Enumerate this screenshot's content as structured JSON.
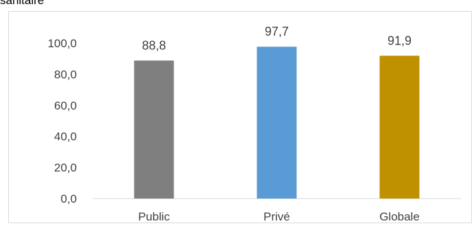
{
  "header_fragment": "sanitaire",
  "chart_data": {
    "type": "bar",
    "categories": [
      "Public",
      "Privé",
      "Globale"
    ],
    "values": [
      88.8,
      97.7,
      91.9
    ],
    "value_labels": [
      "88,8",
      "97,7",
      "91,9"
    ],
    "colors": [
      "#7f7f7f",
      "#5b9bd5",
      "#bf9000"
    ],
    "yticks": [
      0,
      20,
      40,
      60,
      80,
      100
    ],
    "ytick_labels": [
      "0,0",
      "20,0",
      "40,0",
      "60,0",
      "80,0",
      "100,0"
    ],
    "ylim": [
      0,
      100
    ],
    "grid": false,
    "legend": "none",
    "title": "",
    "xlabel": "",
    "ylabel": ""
  }
}
